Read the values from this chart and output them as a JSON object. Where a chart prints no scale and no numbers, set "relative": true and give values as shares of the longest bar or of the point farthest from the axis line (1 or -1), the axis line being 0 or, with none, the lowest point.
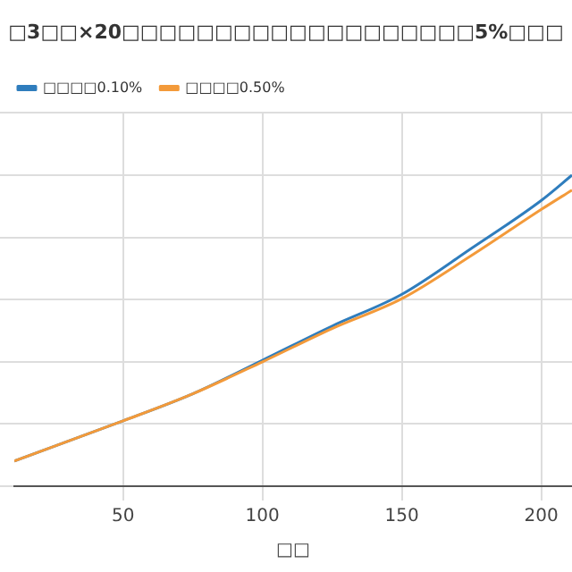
{
  "chart_data": {
    "type": "line",
    "title": "□3□□×20□□□□□□□□□□□□□□□□□□□5%□□□",
    "xlabel": "□□",
    "relative": true,
    "x": [
      11,
      50,
      75,
      100,
      125,
      150,
      175,
      200,
      211
    ],
    "series": [
      {
        "name": "□□□□0.10%",
        "color": "#2f7dbd",
        "values": [
          0.081,
          0.21,
          0.297,
          0.405,
          0.515,
          0.617,
          0.765,
          0.919,
          1
        ]
      },
      {
        "name": "□□□□0.50%",
        "color": "#f39a3a",
        "values": [
          0.081,
          0.21,
          0.297,
          0.4,
          0.507,
          0.603,
          0.742,
          0.89,
          0.952
        ]
      }
    ],
    "xlim": [
      11,
      211
    ],
    "xticks": [
      50,
      100,
      150,
      200
    ],
    "grid": true,
    "legend": "top left"
  }
}
